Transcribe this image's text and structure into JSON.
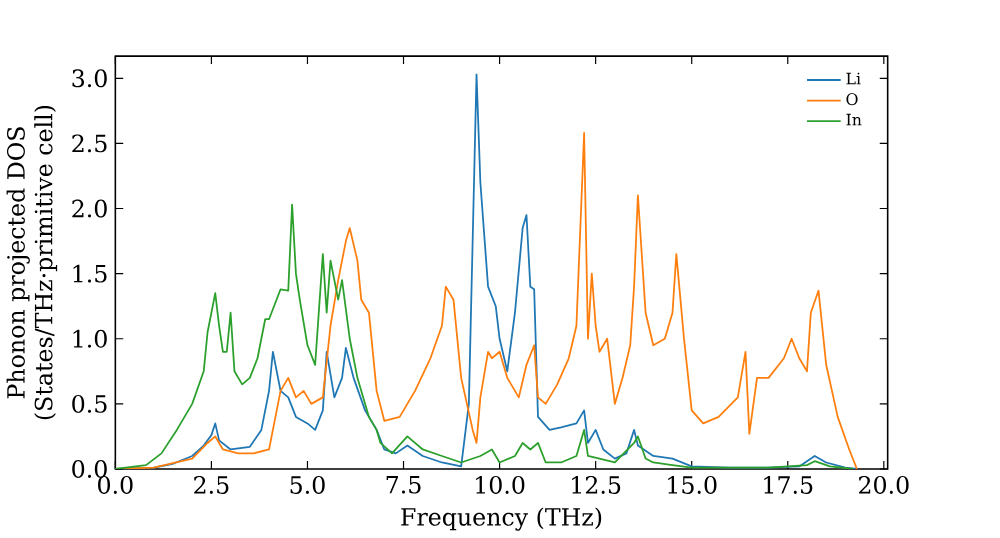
{
  "chart_data": {
    "type": "line",
    "xlabel": "Frequency (THz)",
    "ylabel": "Phonon projected DOS\n(States/THz·primitive cell)",
    "xlim": [
      0,
      20.1
    ],
    "ylim": [
      0,
      3.17
    ],
    "xticks": [
      {
        "value": 0,
        "label": "0.0"
      },
      {
        "value": 2.5,
        "label": "2.5"
      },
      {
        "value": 5,
        "label": "5.0"
      },
      {
        "value": 7.5,
        "label": "7.5"
      },
      {
        "value": 10,
        "label": "10.0"
      },
      {
        "value": 12.5,
        "label": "12.5"
      },
      {
        "value": 15,
        "label": "15.0"
      },
      {
        "value": 17.5,
        "label": "17.5"
      },
      {
        "value": 20,
        "label": "20.0"
      }
    ],
    "yticks": [
      {
        "value": 0,
        "label": "0.0"
      },
      {
        "value": 0.5,
        "label": "0.5"
      },
      {
        "value": 1,
        "label": "1.0"
      },
      {
        "value": 1.5,
        "label": "1.5"
      },
      {
        "value": 2,
        "label": "2.0"
      },
      {
        "value": 2.5,
        "label": "2.5"
      },
      {
        "value": 3,
        "label": "3.0"
      }
    ],
    "legend": "top right",
    "grid": false,
    "marker": "none",
    "line_style": "solid",
    "series": [
      {
        "name": "Li",
        "color": "#1f77b4",
        "x": [
          0,
          1.0,
          1.5,
          2.0,
          2.3,
          2.5,
          2.6,
          2.7,
          3.0,
          3.5,
          3.8,
          4.0,
          4.1,
          4.3,
          4.5,
          4.7,
          5.0,
          5.2,
          5.4,
          5.5,
          5.7,
          5.9,
          6.0,
          6.2,
          6.5,
          6.8,
          7.0,
          7.3,
          7.6,
          8.0,
          8.5,
          9.0,
          9.2,
          9.4,
          9.5,
          9.7,
          9.9,
          10.0,
          10.2,
          10.4,
          10.6,
          10.7,
          10.8,
          10.9,
          11.0,
          11.3,
          11.6,
          12.0,
          12.2,
          12.3,
          12.5,
          12.7,
          13.0,
          13.3,
          13.5,
          13.6,
          14.0,
          14.5,
          15.0,
          16.0,
          17.0,
          17.8,
          18.2,
          18.5,
          19.0,
          19.3
        ],
        "values": [
          0,
          0.01,
          0.04,
          0.1,
          0.18,
          0.26,
          0.35,
          0.22,
          0.15,
          0.17,
          0.3,
          0.6,
          0.9,
          0.6,
          0.55,
          0.4,
          0.35,
          0.3,
          0.45,
          0.9,
          0.55,
          0.7,
          0.93,
          0.7,
          0.45,
          0.3,
          0.15,
          0.12,
          0.18,
          0.1,
          0.05,
          0.02,
          0.5,
          3.03,
          2.2,
          1.4,
          1.25,
          1.0,
          0.75,
          1.2,
          1.85,
          1.95,
          1.4,
          1.38,
          0.4,
          0.3,
          0.32,
          0.35,
          0.45,
          0.2,
          0.3,
          0.15,
          0.08,
          0.12,
          0.3,
          0.18,
          0.1,
          0.08,
          0.02,
          0.01,
          0.01,
          0.02,
          0.1,
          0.05,
          0.01,
          0
        ]
      },
      {
        "name": "O",
        "color": "#ff7f0e",
        "x": [
          0,
          1,
          2,
          2.4,
          2.6,
          2.8,
          3.2,
          3.6,
          4.0,
          4.1,
          4.3,
          4.5,
          4.7,
          4.9,
          5.1,
          5.4,
          5.6,
          5.8,
          6.0,
          6.1,
          6.3,
          6.4,
          6.6,
          6.8,
          7.0,
          7.4,
          7.8,
          8.2,
          8.5,
          8.6,
          8.8,
          9.0,
          9.3,
          9.4,
          9.5,
          9.7,
          9.8,
          10.0,
          10.2,
          10.5,
          10.7,
          10.9,
          11.0,
          11.2,
          11.5,
          11.8,
          12.0,
          12.2,
          12.3,
          12.4,
          12.5,
          12.6,
          12.8,
          13.0,
          13.2,
          13.4,
          13.5,
          13.6,
          13.8,
          14.0,
          14.3,
          14.5,
          14.6,
          14.8,
          15.0,
          15.3,
          15.7,
          16.2,
          16.4,
          16.5,
          16.7,
          17.0,
          17.4,
          17.6,
          17.8,
          18.0,
          18.1,
          18.3,
          18.5,
          18.8,
          19.1,
          19.3
        ],
        "values": [
          0,
          0.01,
          0.08,
          0.2,
          0.25,
          0.15,
          0.12,
          0.12,
          0.15,
          0.3,
          0.6,
          0.7,
          0.55,
          0.6,
          0.5,
          0.55,
          1.1,
          1.45,
          1.75,
          1.85,
          1.6,
          1.3,
          1.2,
          0.6,
          0.37,
          0.4,
          0.6,
          0.85,
          1.1,
          1.4,
          1.3,
          0.7,
          0.3,
          0.2,
          0.55,
          0.9,
          0.85,
          0.9,
          0.7,
          0.55,
          0.8,
          0.95,
          0.55,
          0.5,
          0.65,
          0.85,
          1.1,
          2.58,
          1.0,
          1.5,
          1.1,
          0.9,
          1.0,
          0.5,
          0.7,
          0.95,
          1.4,
          2.1,
          1.2,
          0.95,
          1.0,
          1.2,
          1.65,
          1.0,
          0.45,
          0.35,
          0.4,
          0.55,
          0.9,
          0.27,
          0.7,
          0.7,
          0.85,
          1.0,
          0.85,
          0.75,
          1.2,
          1.37,
          0.8,
          0.4,
          0.15,
          0
        ]
      },
      {
        "name": "In",
        "color": "#2ca02c",
        "x": [
          0,
          0.8,
          1.2,
          1.6,
          2.0,
          2.3,
          2.4,
          2.6,
          2.7,
          2.8,
          2.9,
          3.0,
          3.1,
          3.3,
          3.5,
          3.7,
          3.9,
          4.0,
          4.3,
          4.5,
          4.6,
          4.7,
          4.8,
          5.0,
          5.2,
          5.4,
          5.5,
          5.6,
          5.8,
          5.9,
          6.1,
          6.3,
          6.6,
          6.8,
          6.9,
          7.2,
          7.6,
          8.0,
          8.5,
          9.0,
          9.5,
          9.8,
          10.0,
          10.4,
          10.6,
          10.8,
          11.0,
          11.2,
          11.6,
          12.0,
          12.2,
          12.3,
          12.6,
          13.0,
          13.5,
          13.6,
          13.8,
          14.0,
          14.5,
          15.0,
          17.0,
          18.0,
          18.2,
          18.6,
          19.2
        ],
        "values": [
          0,
          0.03,
          0.12,
          0.3,
          0.5,
          0.75,
          1.05,
          1.35,
          1.1,
          0.9,
          0.9,
          1.2,
          0.75,
          0.65,
          0.7,
          0.85,
          1.15,
          1.15,
          1.38,
          1.37,
          2.03,
          1.5,
          1.3,
          0.95,
          0.8,
          1.65,
          1.2,
          1.6,
          1.3,
          1.45,
          1.0,
          0.7,
          0.4,
          0.3,
          0.2,
          0.12,
          0.25,
          0.15,
          0.1,
          0.05,
          0.1,
          0.15,
          0.05,
          0.1,
          0.2,
          0.15,
          0.2,
          0.05,
          0.05,
          0.1,
          0.3,
          0.1,
          0.08,
          0.05,
          0.2,
          0.25,
          0.08,
          0.05,
          0.03,
          0.01,
          0.01,
          0.03,
          0.06,
          0.02,
          0
        ]
      }
    ]
  }
}
